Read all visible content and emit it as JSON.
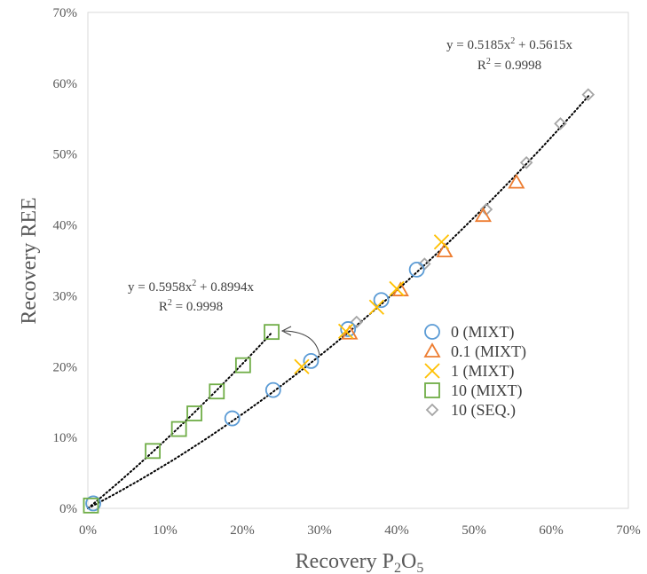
{
  "chart_data": {
    "type": "scatter",
    "xlabel_parts": [
      "Recovery P",
      "2",
      "O",
      "5"
    ],
    "ylabel": "Recovery REE",
    "xlim": [
      0,
      0.7
    ],
    "ylim": [
      0,
      0.7
    ],
    "x_ticks": [
      0,
      0.1,
      0.2,
      0.3,
      0.4,
      0.5,
      0.6,
      0.7
    ],
    "y_ticks": [
      0,
      0.1,
      0.2,
      0.3,
      0.4,
      0.5,
      0.6,
      0.7
    ],
    "x_tick_labels": [
      "0%",
      "10%",
      "20%",
      "30%",
      "40%",
      "50%",
      "60%",
      "70%"
    ],
    "y_tick_labels": [
      "0%",
      "10%",
      "20%",
      "30%",
      "40%",
      "50%",
      "60%",
      "70%"
    ],
    "grid": false,
    "legend_position": "right-center",
    "series": [
      {
        "name": "0 (MIXT)",
        "marker": "circle",
        "color": "#5b9bd5",
        "points": [
          [
            0.007,
            0.007
          ],
          [
            0.187,
            0.127
          ],
          [
            0.24,
            0.167
          ],
          [
            0.289,
            0.208
          ],
          [
            0.337,
            0.253
          ],
          [
            0.38,
            0.294
          ],
          [
            0.426,
            0.337
          ]
        ]
      },
      {
        "name": "0.1 (MIXT)",
        "marker": "triangle",
        "color": "#ed7d31",
        "points": [
          [
            0.339,
            0.247
          ],
          [
            0.405,
            0.308
          ],
          [
            0.462,
            0.363
          ],
          [
            0.512,
            0.413
          ],
          [
            0.555,
            0.46
          ]
        ]
      },
      {
        "name": "1 (MIXT)",
        "marker": "x",
        "color": "#ffc000",
        "points": [
          [
            0.277,
            0.2
          ],
          [
            0.334,
            0.25
          ],
          [
            0.374,
            0.284
          ],
          [
            0.4,
            0.31
          ],
          [
            0.458,
            0.376
          ]
        ]
      },
      {
        "name": "10 (MIXT)",
        "marker": "square",
        "color": "#70ad47",
        "points": [
          [
            0.004,
            0.004
          ],
          [
            0.084,
            0.081
          ],
          [
            0.118,
            0.112
          ],
          [
            0.138,
            0.134
          ],
          [
            0.167,
            0.165
          ],
          [
            0.201,
            0.202
          ],
          [
            0.238,
            0.249
          ]
        ]
      },
      {
        "name": "10 (SEQ.)",
        "marker": "diamond",
        "color": "#a5a5a5",
        "points": [
          [
            0.348,
            0.263
          ],
          [
            0.436,
            0.345
          ],
          [
            0.516,
            0.422
          ],
          [
            0.568,
            0.488
          ],
          [
            0.612,
            0.543
          ],
          [
            0.648,
            0.584
          ]
        ]
      }
    ],
    "trendlines": [
      {
        "a": 0.5185,
        "b": 0.5615,
        "x_range": [
          0.0,
          0.65
        ],
        "equation_parts": [
          "y = 0.5185x",
          "2",
          " + 0.5615x"
        ],
        "r2_parts": [
          "R",
          "2",
          " = 0.9998"
        ]
      },
      {
        "a": 0.5958,
        "b": 0.8994,
        "x_range": [
          0.0,
          0.238
        ],
        "equation_parts": [
          "y = 0.5958x",
          "2",
          " + 0.8994x"
        ],
        "r2_parts": [
          "R",
          "2",
          " = 0.9998"
        ]
      }
    ]
  }
}
